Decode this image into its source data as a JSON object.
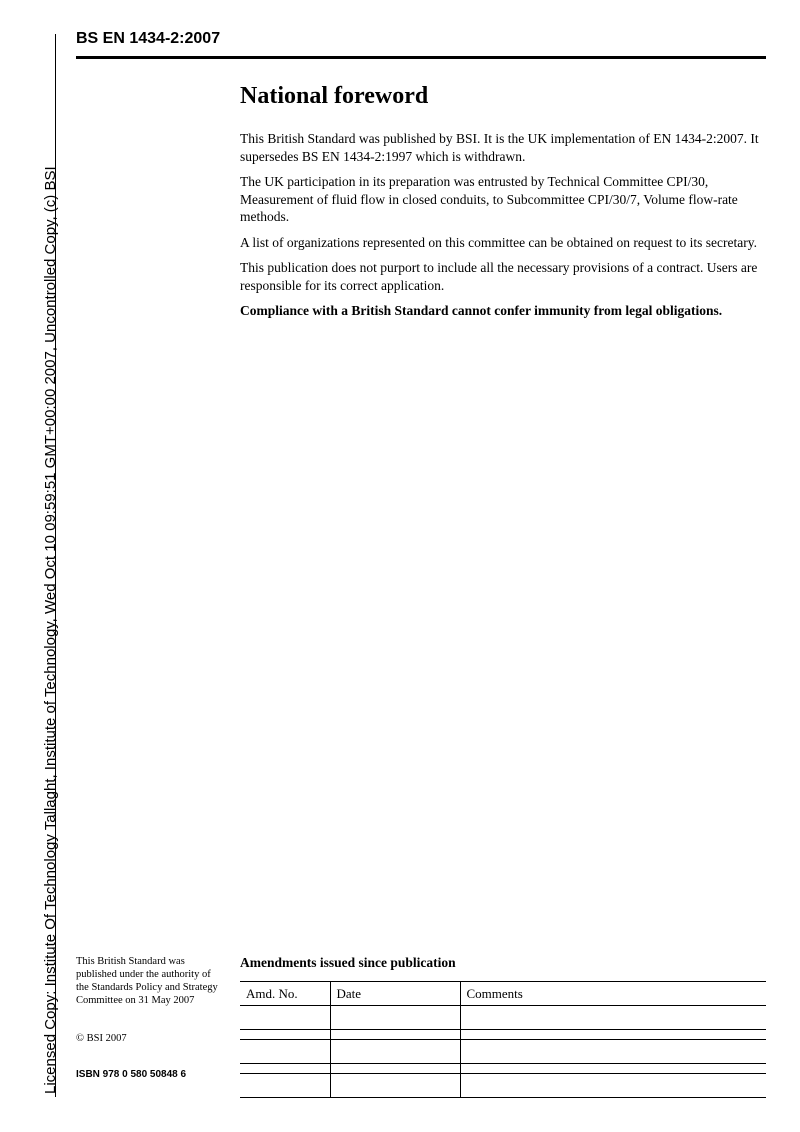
{
  "header": {
    "standard_id": "BS EN 1434-2:2007"
  },
  "title": "National foreword",
  "paragraphs": [
    "This British Standard was published by BSI. It is the UK implementation of EN 1434-2:2007. It supersedes BS EN 1434-2:1997 which is withdrawn.",
    "The UK participation in its preparation was entrusted by Technical Committee CPI/30, Measurement of fluid flow in closed conduits, to Subcommittee CPI/30/7, Volume flow-rate methods.",
    "A list of organizations represented on this committee can be obtained on request to its secretary.",
    "This publication does not purport to include all the necessary provisions of a contract. Users are responsible for its correct application."
  ],
  "bold_para": "Compliance with a British Standard cannot confer immunity from legal obligations.",
  "side": {
    "authority": "This British Standard was published under the authority of the Standards Policy and Strategy Committee on 31 May 2007",
    "copyright": "© BSI 2007",
    "isbn": "ISBN 978 0 580 50848 6"
  },
  "amend": {
    "title": "Amendments issued since publication",
    "cols": [
      "Amd. No.",
      "Date",
      "Comments"
    ]
  },
  "license_text": "Licensed Copy: Institute Of Technology Tallaght, Institute of Technology, Wed Oct 10 09:59:51 GMT+00:00 2007, Uncontrolled Copy, (c) BSI",
  "colors": {
    "text": "#000000",
    "bg": "#ffffff"
  }
}
